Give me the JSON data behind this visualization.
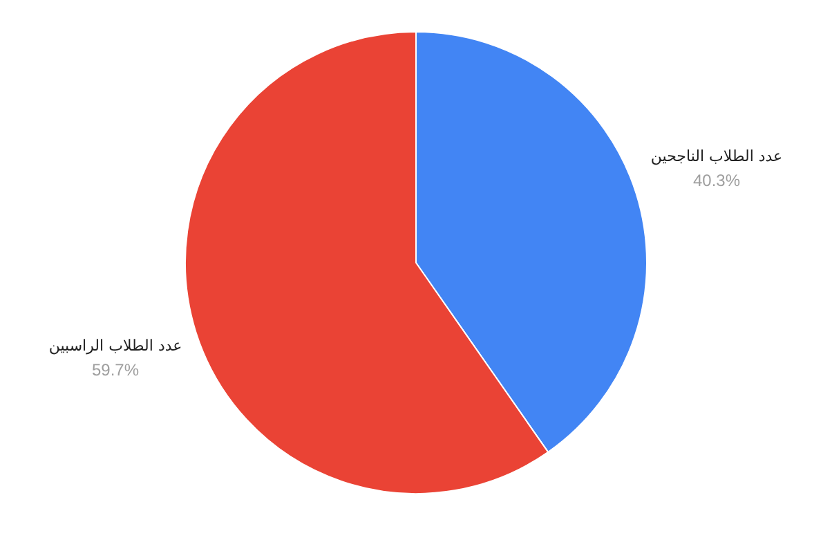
{
  "chart_data": {
    "type": "pie",
    "categories": [
      "عدد الطلاب الناجحين",
      "عدد الطلاب الراسبين"
    ],
    "values": [
      40.3,
      59.7
    ],
    "colors": [
      "#4285f4",
      "#ea4335"
    ],
    "value_labels": [
      "40.3%",
      "59.7%"
    ]
  }
}
